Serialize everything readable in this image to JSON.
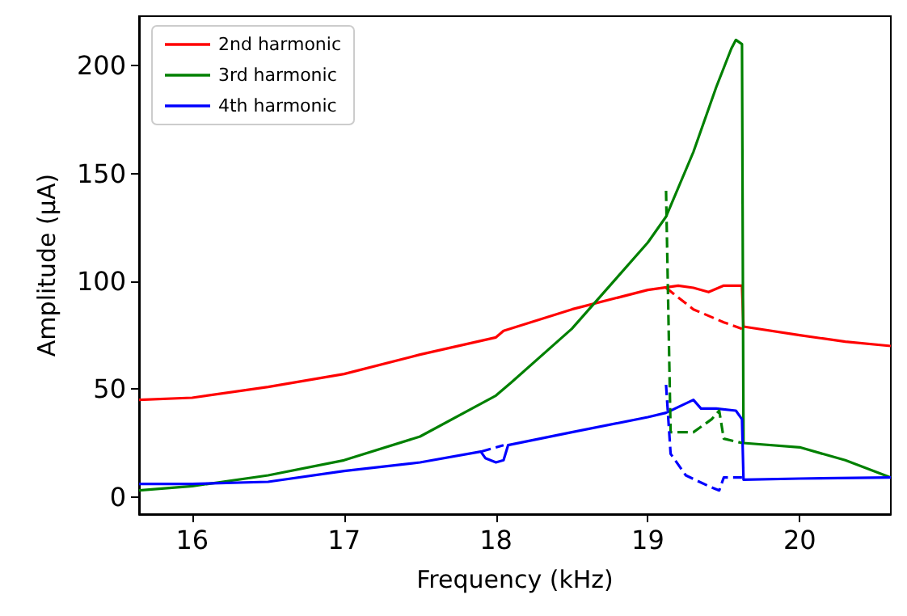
{
  "chart_data": {
    "type": "line",
    "xlabel": "Frequency (kHz)",
    "ylabel": "Amplitude (μA)",
    "xlim": [
      15.65,
      20.6
    ],
    "xticks": [
      16,
      17,
      18,
      19,
      20
    ],
    "ylim": [
      -8,
      223
    ],
    "yticks": [
      0,
      50,
      100,
      150,
      200
    ],
    "grid": false,
    "legend": "top left",
    "marker": "none",
    "line_style": "solid",
    "series": [
      {
        "name": "2nd harmonic",
        "color": "#ff0000",
        "x": [
          15.65,
          16,
          16.5,
          17,
          17.5,
          18,
          18.05,
          18.5,
          19,
          19.2,
          19.3,
          19.4,
          19.5,
          19.6,
          19.62,
          19.63,
          20,
          20.3,
          20.6
        ],
        "values": [
          45,
          46,
          51,
          57,
          66,
          74,
          77,
          87,
          96,
          98,
          97,
          95,
          98,
          98,
          98,
          79,
          75,
          72,
          70
        ]
      },
      {
        "name": "3rd harmonic",
        "color": "#008000",
        "x": [
          15.65,
          16,
          16.5,
          17,
          17.5,
          18,
          18.1,
          18.5,
          19,
          19.12,
          19.3,
          19.45,
          19.55,
          19.58,
          19.62,
          19.63,
          20,
          20.3,
          20.6
        ],
        "values": [
          3,
          5,
          10,
          17,
          28,
          47,
          53,
          78,
          118,
          130,
          160,
          190,
          208,
          212,
          210,
          25,
          23,
          17,
          9
        ]
      },
      {
        "name": "4th harmonic",
        "color": "#0000ff",
        "x": [
          15.65,
          16,
          16.5,
          17,
          17.5,
          17.9,
          17.93,
          18,
          18.05,
          18.08,
          18.5,
          19,
          19.12,
          19.3,
          19.35,
          19.45,
          19.58,
          19.62,
          19.63,
          20,
          20.6
        ],
        "values": [
          6,
          6,
          7,
          12,
          16,
          21,
          18,
          16,
          17,
          24,
          30,
          37,
          39,
          45,
          41,
          41,
          40,
          36,
          8,
          8.5,
          9
        ]
      },
      {
        "color": "#ff0000",
        "line_style": "dashed",
        "x": [
          19.12,
          19.3,
          19.5,
          19.62
        ],
        "values": [
          97,
          87,
          81,
          78
        ]
      },
      {
        "color": "#008000",
        "line_style": "dashed",
        "x": [
          19.12,
          19.15,
          19.3,
          19.42,
          19.47,
          19.5,
          19.62
        ],
        "values": [
          142,
          30,
          30,
          36,
          40,
          27,
          25
        ]
      },
      {
        "color": "#0000ff",
        "line_style": "dashed",
        "x": [
          17.9,
          18.05,
          18.06,
          19.12,
          19.15,
          19.25,
          19.4,
          19.47,
          19.5,
          19.62
        ],
        "values": [
          21,
          24,
          null,
          52,
          20,
          10,
          5,
          3,
          9,
          9
        ]
      }
    ]
  }
}
